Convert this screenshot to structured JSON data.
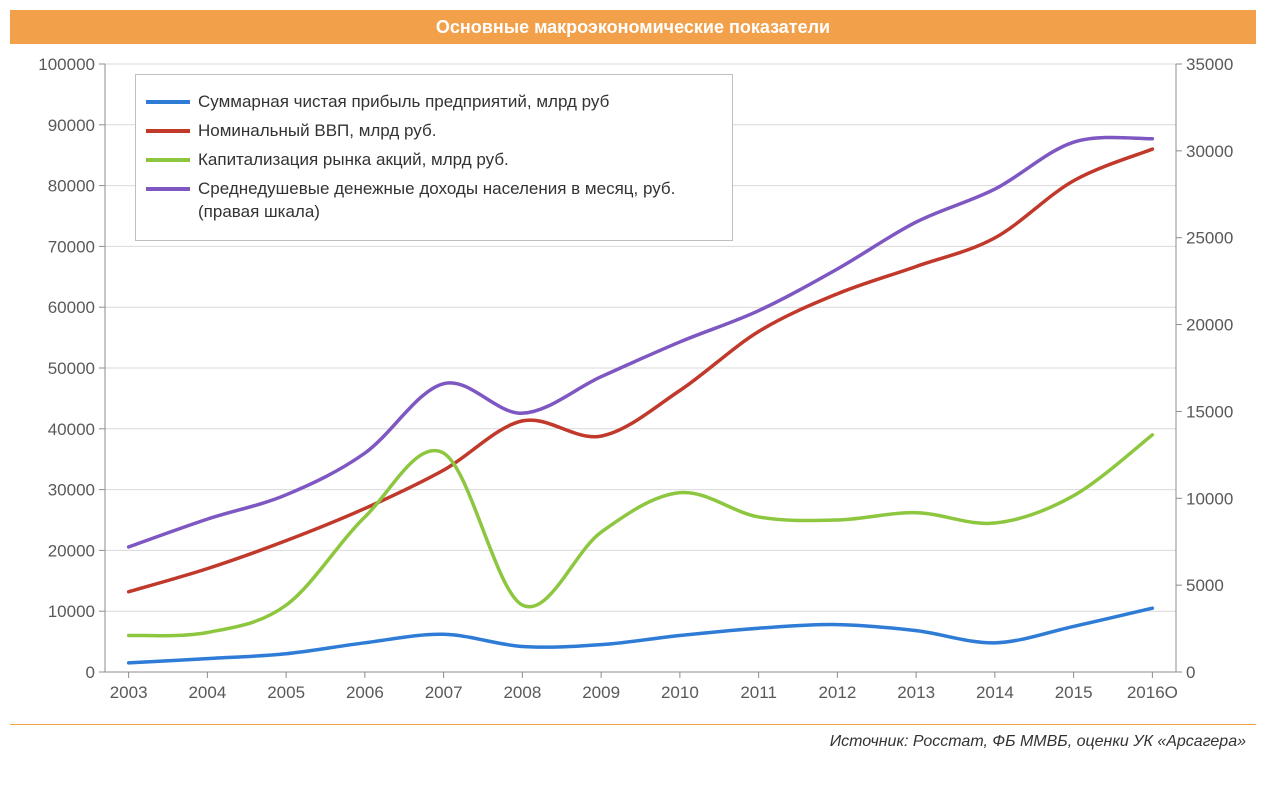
{
  "title": "Основные макроэкономические показатели",
  "source": "Источник: Росстат, ФБ ММВБ, оценки УК «Арсагера»",
  "chart": {
    "type": "line",
    "background_color": "#ffffff",
    "title_bar_color": "#f3a04a",
    "title_text_color": "#ffffff",
    "axis_line_color": "#8c8c8c",
    "grid_color": "#d9d9d9",
    "tick_label_color": "#595959",
    "tick_fontsize": 17,
    "line_width": 3.5,
    "x": {
      "categories": [
        "2003",
        "2004",
        "2005",
        "2006",
        "2007",
        "2008",
        "2009",
        "2010",
        "2011",
        "2012",
        "2013",
        "2014",
        "2015",
        "2016О"
      ]
    },
    "y_left": {
      "min": 0,
      "max": 100000,
      "tick_step": 10000,
      "ticks": [
        0,
        10000,
        20000,
        30000,
        40000,
        50000,
        60000,
        70000,
        80000,
        90000,
        100000
      ]
    },
    "y_right": {
      "min": 0,
      "max": 35000,
      "tick_step": 5000,
      "ticks": [
        0,
        5000,
        10000,
        15000,
        20000,
        25000,
        30000,
        35000
      ]
    },
    "legend": {
      "border_color": "#bfbfbf",
      "background": "#ffffff",
      "fontsize": 17,
      "position": "top-left-inside"
    },
    "series": [
      {
        "id": "profit",
        "label": "Суммарная чистая прибыль предприятий, млрд руб",
        "color": "#2e7cd6",
        "axis": "left",
        "values": [
          1500,
          2200,
          3000,
          4800,
          6200,
          4200,
          4500,
          6000,
          7200,
          7800,
          6800,
          4800,
          7500,
          10500
        ]
      },
      {
        "id": "gdp",
        "label": "Номинальный ВВП, млрд руб.",
        "color": "#c0392b",
        "axis": "left",
        "values": [
          13200,
          17000,
          21600,
          26900,
          33200,
          41300,
          38800,
          46300,
          56000,
          62200,
          66700,
          71400,
          80800,
          86000
        ]
      },
      {
        "id": "market_cap",
        "label": "Капитализация рынка акций, млрд руб.",
        "color": "#8dc63f",
        "axis": "left",
        "values": [
          6000,
          6500,
          11000,
          25500,
          36000,
          11000,
          23000,
          29500,
          25500,
          25000,
          26200,
          24500,
          29000,
          39000
        ]
      },
      {
        "id": "income",
        "label": "Среднедушевые денежные доходы населения в месяц, руб. (правая шкала)",
        "color": "#7e57c2",
        "axis": "right",
        "values": [
          7200,
          8800,
          10200,
          12600,
          16600,
          14900,
          17000,
          19000,
          20800,
          23200,
          25900,
          27800,
          30500,
          30700
        ]
      }
    ]
  }
}
